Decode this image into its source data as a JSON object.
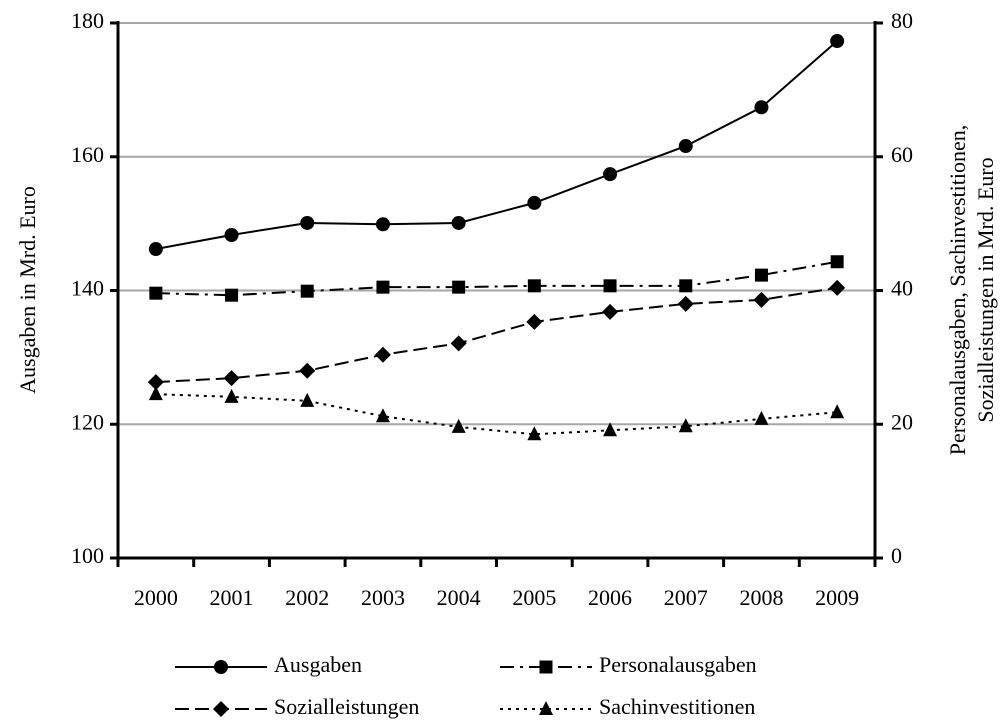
{
  "chart_data": {
    "type": "line",
    "categories": [
      "2000",
      "2001",
      "2002",
      "2003",
      "2004",
      "2005",
      "2006",
      "2007",
      "2008",
      "2009"
    ],
    "ylabel": "Ausgaben in Mrd. Euro",
    "y2label": [
      "Personalausgaben, Sachinvestitionen,",
      "Sozialleistungen in Mrd. Euro"
    ],
    "ylim": [
      100,
      180
    ],
    "yticks": [
      100,
      120,
      140,
      160,
      180
    ],
    "y2lim": [
      0,
      80
    ],
    "y2ticks": [
      0,
      20,
      40,
      60,
      80
    ],
    "grid": true,
    "legend": "bottom",
    "series": [
      {
        "name": "Ausgaben",
        "color": "#000000",
        "marker": "circle",
        "dash": "solid",
        "values": [
          146.2,
          148.3,
          150.1,
          149.9,
          150.1,
          153.1,
          157.4,
          161.6,
          167.4,
          177.3
        ]
      },
      {
        "name": "Personalausgaben",
        "color": "#000000",
        "marker": "square",
        "dash": "dashdot",
        "axis": "y2",
        "values": [
          39.6,
          39.3,
          39.9,
          40.5,
          40.5,
          40.7,
          40.7,
          40.7,
          42.3,
          44.3
        ]
      },
      {
        "name": "Sozialleistungen",
        "color": "#000000",
        "marker": "diamond",
        "dash": "dashed",
        "axis": "y2",
        "values": [
          26.3,
          26.9,
          28.0,
          30.4,
          32.1,
          35.3,
          36.8,
          38.0,
          38.6,
          40.4
        ]
      },
      {
        "name": "Sachinvestitionen",
        "color": "#000000",
        "marker": "triangle",
        "dash": "dotted",
        "axis": "y2",
        "values": [
          24.5,
          24.1,
          23.5,
          21.2,
          19.6,
          18.5,
          19.1,
          19.7,
          20.8,
          21.8
        ]
      }
    ]
  }
}
